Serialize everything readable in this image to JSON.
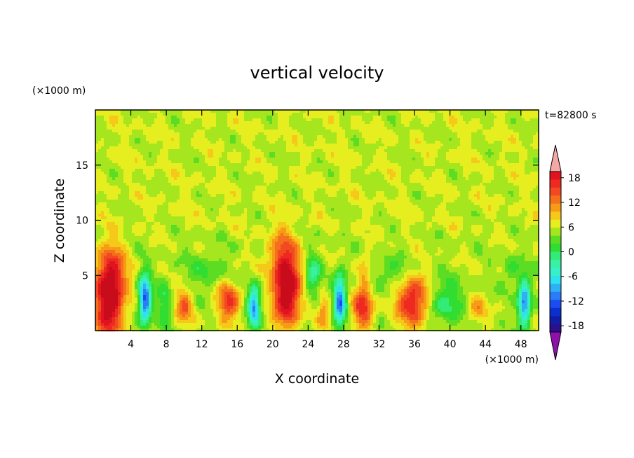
{
  "chart_data": {
    "type": "heatmap",
    "title": "vertical velocity",
    "xlabel": "X coordinate",
    "ylabel": "Z coordinate",
    "x_unit_label": "(×1000 m)",
    "y_unit_label": "(×1000 m)",
    "time_label": "t=82800 s",
    "xlim": [
      0,
      50
    ],
    "ylim": [
      0,
      20
    ],
    "x_ticks": [
      4,
      8,
      12,
      16,
      20,
      24,
      28,
      32,
      36,
      40,
      44,
      48
    ],
    "y_ticks": [
      5,
      10,
      15
    ],
    "background_value": 0,
    "features": [
      {
        "x": 1.6,
        "z": 2.8,
        "sx": 1.1,
        "sz": 2.4,
        "w": 14
      },
      {
        "x": 1.8,
        "z": 5.8,
        "sx": 1.3,
        "sz": 1.6,
        "w": 4
      },
      {
        "x": 5.6,
        "z": 2.8,
        "sx": 0.5,
        "sz": 1.6,
        "w": -14
      },
      {
        "x": 10.0,
        "z": 2.2,
        "sx": 0.7,
        "sz": 1.1,
        "w": 6
      },
      {
        "x": 7.8,
        "z": 2.4,
        "sx": 0.6,
        "sz": 1.5,
        "w": -4
      },
      {
        "x": 15.0,
        "z": 2.6,
        "sx": 0.9,
        "sz": 1.2,
        "w": 8
      },
      {
        "x": 17.9,
        "z": 2.2,
        "sx": 0.5,
        "sz": 1.3,
        "w": -12
      },
      {
        "x": 21.6,
        "z": 3.2,
        "sx": 1.0,
        "sz": 2.0,
        "w": 13
      },
      {
        "x": 21.2,
        "z": 6.5,
        "sx": 1.2,
        "sz": 1.8,
        "w": 7
      },
      {
        "x": 24.5,
        "z": 5.0,
        "sx": 0.6,
        "sz": 1.3,
        "w": -6
      },
      {
        "x": 25.8,
        "z": 1.8,
        "sx": 0.5,
        "sz": 1.0,
        "w": 5
      },
      {
        "x": 27.6,
        "z": 2.8,
        "sx": 0.5,
        "sz": 1.6,
        "w": -13
      },
      {
        "x": 30.2,
        "z": 2.0,
        "sx": 0.8,
        "sz": 1.2,
        "w": 9
      },
      {
        "x": 30.3,
        "z": 5.0,
        "sx": 0.5,
        "sz": 1.2,
        "w": 4
      },
      {
        "x": 35.8,
        "z": 2.7,
        "sx": 1.2,
        "sz": 1.6,
        "w": 10
      },
      {
        "x": 39.5,
        "z": 2.6,
        "sx": 1.3,
        "sz": 1.4,
        "w": -5
      },
      {
        "x": 43.0,
        "z": 1.8,
        "sx": 0.8,
        "sz": 0.8,
        "w": 4
      },
      {
        "x": 48.4,
        "z": 2.5,
        "sx": 0.5,
        "sz": 1.5,
        "w": -13
      },
      {
        "x": 47.0,
        "z": 5.5,
        "sx": 0.7,
        "sz": 1.0,
        "w": -3
      },
      {
        "x": 12.5,
        "z": 5.5,
        "sx": 1.5,
        "sz": 1.2,
        "w": -3
      },
      {
        "x": 33.5,
        "z": 5.2,
        "sx": 1.5,
        "sz": 1.0,
        "w": -3
      }
    ],
    "colorbar": {
      "labels": [
        "18",
        "12",
        "6",
        "0",
        "-6",
        "-12",
        "-18"
      ],
      "label_values": [
        18,
        12,
        6,
        0,
        -6,
        -12,
        -18
      ],
      "min": -21,
      "max": 21,
      "step": 1.5,
      "colors": [
        "#7a0fa6",
        "#2b0f8e",
        "#101ea6",
        "#0a2fcc",
        "#1a4cf0",
        "#2a7cf7",
        "#2fb0f5",
        "#2ee0f0",
        "#36f0c8",
        "#3af0a4",
        "#33ec78",
        "#30dd30",
        "#5cdc22",
        "#a6e61e",
        "#e6ee20",
        "#f6c81a",
        "#f79a16",
        "#f5701c",
        "#f24a20",
        "#ee2a20",
        "#e01420",
        "#c80c1c"
      ],
      "upper_arrow_color": "#f4a7a3",
      "lower_arrow_color": "#8f10ab"
    }
  }
}
